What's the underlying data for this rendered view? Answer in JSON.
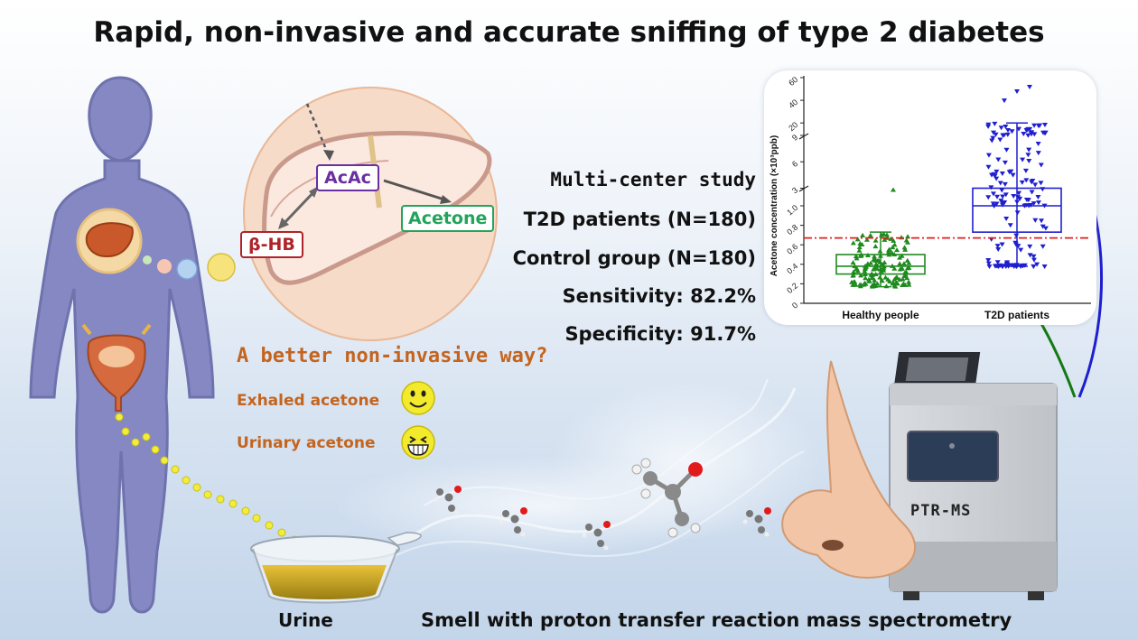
{
  "title": "Rapid, non-invasive and accurate sniffing of type 2 diabetes",
  "liver_diagram": {
    "labels": {
      "acac": "AcAc",
      "acetone": "Acetone",
      "bhb": "β-HB"
    },
    "colors": {
      "acac": "#6a2fa0",
      "acetone": "#22a45a",
      "bhb": "#b0232a"
    }
  },
  "study": {
    "heading": "Multi-center study",
    "patients": "T2D patients (N=180)",
    "controls": "Control group (N=180)",
    "sensitivity": "Sensitivity: 82.2%",
    "specificity": "Specificity: 91.7%"
  },
  "noninvasive": {
    "question": "A better non-invasive way?",
    "exhaled": "Exhaled acetone",
    "urinary": "Urinary acetone",
    "exhaled_icon": "smiling-face-icon",
    "urinary_icon": "grinning-face-icon",
    "color": "#c4641e"
  },
  "urine_label": "Urine",
  "instrument_label": "PTR-MS",
  "caption": "Smell with proton transfer reaction mass spectrometry",
  "chart_data": {
    "type": "box",
    "ylabel": "Acetone concentration (×10³ppb)",
    "y_scale": "segmented (broken axis)",
    "y_ticks": [
      "0",
      "0.2",
      "0.4",
      "0.6",
      "0.8",
      "1.0",
      "3",
      "6",
      "9",
      "20",
      "40",
      "60"
    ],
    "categories": [
      "Healthy people",
      "T2D patients"
    ],
    "series": [
      {
        "name": "Healthy people",
        "color": "#1f8a1f",
        "marker": "triangle-up",
        "q1": 0.3,
        "median": 0.38,
        "q3": 0.5,
        "whisker_low": 0.17,
        "whisker_high": 0.73,
        "n": 180
      },
      {
        "name": "T2D patients",
        "color": "#1f1fd0",
        "marker": "triangle-down",
        "q1": 0.73,
        "median": 1.0,
        "q3": 3.0,
        "whisker_low": 0.38,
        "whisker_high": 20,
        "n": 180
      }
    ],
    "threshold": {
      "value": 0.67,
      "color": "#e02020",
      "style": "dash-dot"
    },
    "grid": false
  }
}
